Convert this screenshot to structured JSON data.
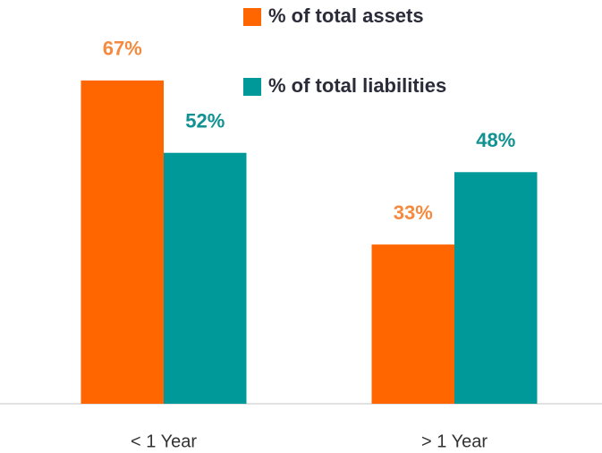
{
  "chart_data": {
    "type": "bar",
    "categories": [
      "< 1 Year",
      "> 1 Year"
    ],
    "series": [
      {
        "name": "% of total assets",
        "color": "#FF6600",
        "label_color": "#F58A3F",
        "values": [
          67,
          33
        ],
        "value_labels": [
          "67%",
          "33%"
        ]
      },
      {
        "name": "% of total liabilities",
        "color": "#009999",
        "label_color": "#119191",
        "values": [
          52,
          48
        ],
        "value_labels": [
          "52%",
          "48%"
        ]
      }
    ],
    "ylim": [
      0,
      80
    ],
    "legend": "top"
  }
}
